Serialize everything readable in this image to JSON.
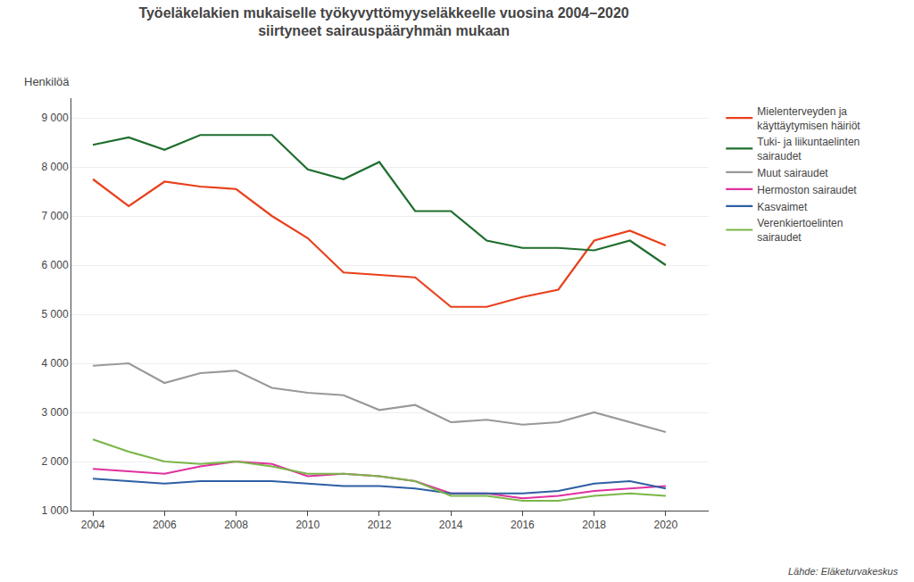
{
  "chart_data": {
    "type": "line",
    "title": "Työeläkelakien mukaiselle työkyvyttömyyseläkkeelle vuosina 2004–2020\nsiirtyneet sairauspääryhmän mukaan",
    "ylabel": "Henkilöä",
    "annotations": [
      "Lähde: Eläketurvakeskus"
    ],
    "x": [
      2004,
      2005,
      2006,
      2007,
      2008,
      2009,
      2010,
      2011,
      2012,
      2013,
      2014,
      2015,
      2016,
      2017,
      2018,
      2019,
      2020
    ],
    "series": [
      {
        "name": "Mielenterveyden ja\nkäyttäytymisen häiriöt",
        "color": "#e8401c",
        "values": [
          7750,
          7200,
          7700,
          7600,
          7550,
          7000,
          6550,
          5850,
          5800,
          5750,
          5150,
          5150,
          5350,
          5500,
          6500,
          6700,
          6400
        ]
      },
      {
        "name": "Tuki- ja liikuntaelinten\nsairaudet",
        "color": "#1e6e2e",
        "values": [
          8450,
          8600,
          8350,
          8650,
          8650,
          8650,
          7950,
          7750,
          8100,
          7100,
          7100,
          6500,
          6350,
          6350,
          6300,
          6500,
          6000
        ]
      },
      {
        "name": "Muut sairaudet",
        "color": "#999999",
        "values": [
          3950,
          4000,
          3600,
          3800,
          3850,
          3500,
          3400,
          3350,
          3050,
          3150,
          2800,
          2850,
          2750,
          2800,
          3000,
          2800,
          2600
        ]
      },
      {
        "name": "Hermoston sairaudet",
        "color": "#e030a0",
        "values": [
          1850,
          1800,
          1750,
          1900,
          2000,
          1950,
          1700,
          1750,
          1700,
          1600,
          1350,
          1350,
          1250,
          1300,
          1400,
          1450,
          1500
        ]
      },
      {
        "name": "Kasvaimet",
        "color": "#2e5fa3",
        "values": [
          1650,
          1600,
          1550,
          1600,
          1600,
          1600,
          1550,
          1500,
          1500,
          1450,
          1350,
          1350,
          1350,
          1400,
          1550,
          1600,
          1450
        ]
      },
      {
        "name": "Verenkiertoelinten\nsairaudet",
        "color": "#7ab648",
        "values": [
          2450,
          2200,
          2000,
          1950,
          2000,
          1900,
          1750,
          1750,
          1700,
          1600,
          1300,
          1300,
          1200,
          1200,
          1300,
          1350,
          1300
        ]
      }
    ],
    "xlim": [
      2003.4,
      2021.2
    ],
    "xticks": [
      2004,
      2006,
      2008,
      2010,
      2012,
      2014,
      2016,
      2018,
      2020
    ],
    "ylim": [
      1000,
      9400
    ],
    "yticks": [
      {
        "value": 1000,
        "label": "1 000"
      },
      {
        "value": 2000,
        "label": "2 000"
      },
      {
        "value": 3000,
        "label": "3 000"
      },
      {
        "value": 4000,
        "label": "4 000"
      },
      {
        "value": 5000,
        "label": "5 000"
      },
      {
        "value": 6000,
        "label": "6 000"
      },
      {
        "value": 7000,
        "label": "7 000"
      },
      {
        "value": 8000,
        "label": "8 000"
      },
      {
        "value": 9000,
        "label": "9 000"
      }
    ],
    "grid": "y",
    "legend": "right"
  }
}
